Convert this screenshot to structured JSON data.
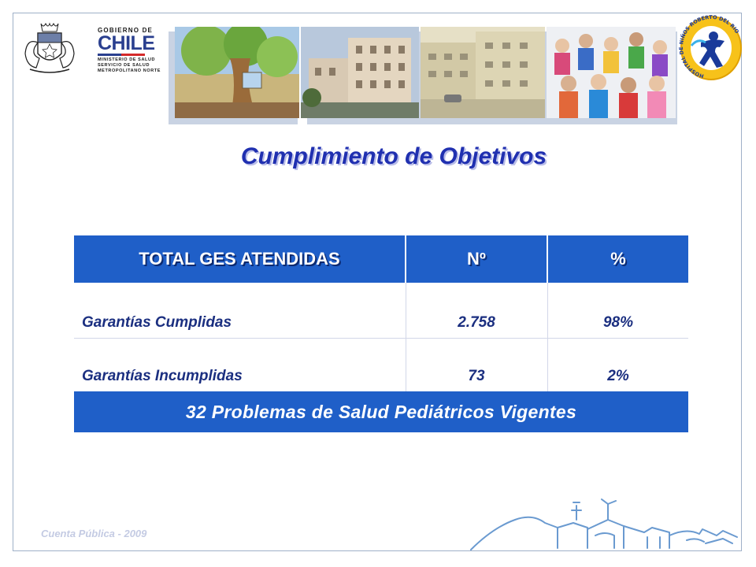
{
  "header": {
    "gov_logo": {
      "line1": "GOBIERNO DE",
      "line2": "CHILE",
      "line3": "MINISTERIO DE SALUD",
      "line4": "SERVICIO DE SALUD",
      "line5": "METROPOLITANO NORTE"
    },
    "hospital_logo": {
      "ring_text": "HOSPITAL DE NIÑOS ROBERTO DEL RIO"
    },
    "photos": [
      "mural-tree-photo",
      "hospital-building-photo",
      "old-building-photo",
      "children-group-photo"
    ]
  },
  "title": "Cumplimiento de Objetivos",
  "table": {
    "headers": [
      "TOTAL GES ATENDIDAS",
      "Nº",
      "%"
    ],
    "rows": [
      {
        "label": "Garantías Cumplidas",
        "count": "2.758",
        "percent": "98%"
      },
      {
        "label": "Garantías Incumplidas",
        "count": "73",
        "percent": "2%"
      }
    ],
    "footer": "32 Problemas de Salud Pediátricos Vigentes"
  },
  "footnote": "Cuenta Pública - 2009",
  "colors": {
    "header_blue": "#1f5fc8",
    "title_blue": "#2030b0",
    "text_navy": "#1b2f80"
  }
}
